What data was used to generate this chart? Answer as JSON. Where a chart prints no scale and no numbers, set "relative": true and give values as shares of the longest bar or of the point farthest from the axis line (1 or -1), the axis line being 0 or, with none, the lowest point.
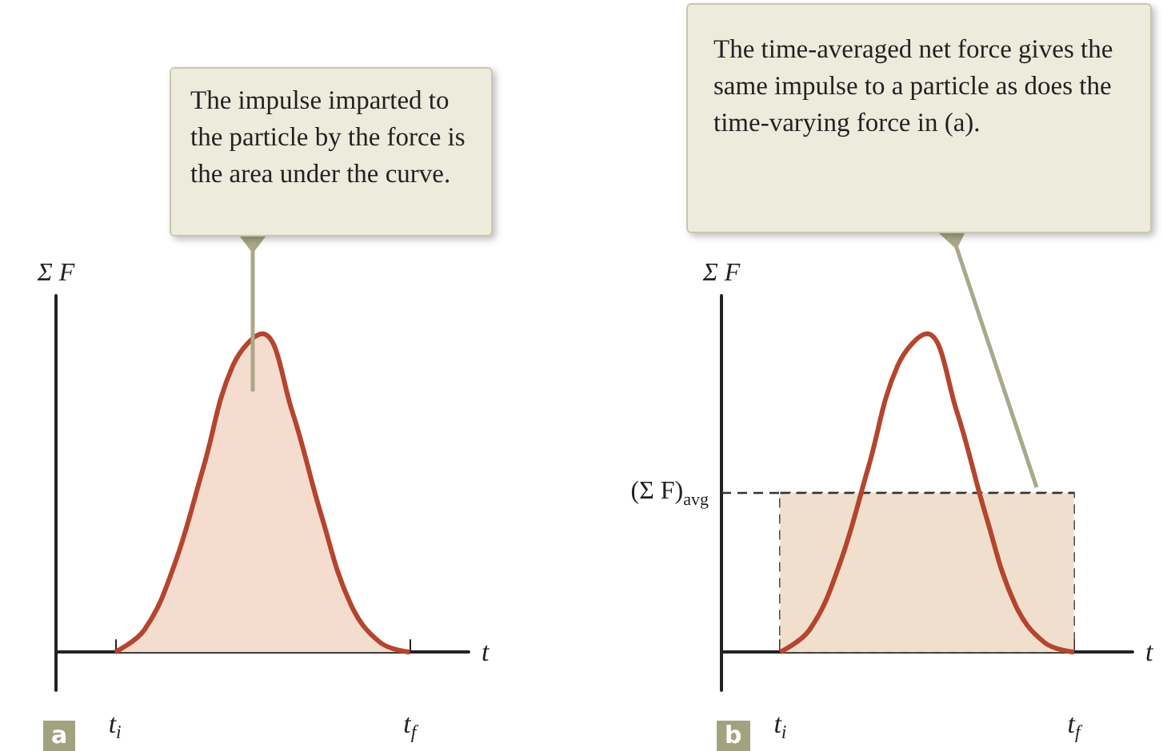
{
  "chart_data": [
    {
      "type": "area",
      "relative": true,
      "xlabel": "t",
      "ylabel": "Σ F",
      "marker": "none",
      "categories": [
        null,
        null,
        "t$_{i}$",
        null,
        null,
        null,
        null,
        null,
        null,
        null,
        null,
        null,
        "t$_{f}$",
        null,
        null
      ],
      "series": [
        {
          "color": "#b4452f",
          "values": [
            null,
            null,
            0,
            0.07,
            0.27,
            0.58,
            0.9,
            1,
            0.76,
            0.43,
            0.15,
            0.03,
            0,
            null,
            null
          ]
        }
      ],
      "annotations": [
        "The impulse imparted to the particle by the force is the area under the curve.",
        "a"
      ]
    },
    {
      "type": "line",
      "relative": true,
      "xlabel": "t",
      "ylabel": "Σ F",
      "marker": "none",
      "categories": [
        null,
        null,
        "t$_{i}$",
        null,
        null,
        null,
        null,
        null,
        null,
        null,
        null,
        null,
        "t$_{f}$",
        null,
        null
      ],
      "series": [
        {
          "type": "area",
          "color": "#f0dfcc",
          "line_style": "dashed",
          "values": [
            null,
            null,
            0.5,
            0.5,
            0.5,
            0.5,
            0.5,
            0.5,
            0.5,
            0.5,
            0.5,
            0.5,
            0.5,
            null,
            null
          ]
        },
        {
          "color": "#b4452f",
          "values": [
            null,
            null,
            0,
            0.07,
            0.27,
            0.58,
            0.9,
            1,
            0.76,
            0.43,
            0.15,
            0.03,
            0,
            null,
            null
          ]
        }
      ],
      "ref_lines": [
        {
          "axis": "y",
          "value": 0.5,
          "label": "(Σ F)$_{avg}$"
        }
      ],
      "annotations": [
        "The time-averaged net force gives the same impulse to a particle as does the time-varying force in (a).",
        "b"
      ]
    }
  ]
}
